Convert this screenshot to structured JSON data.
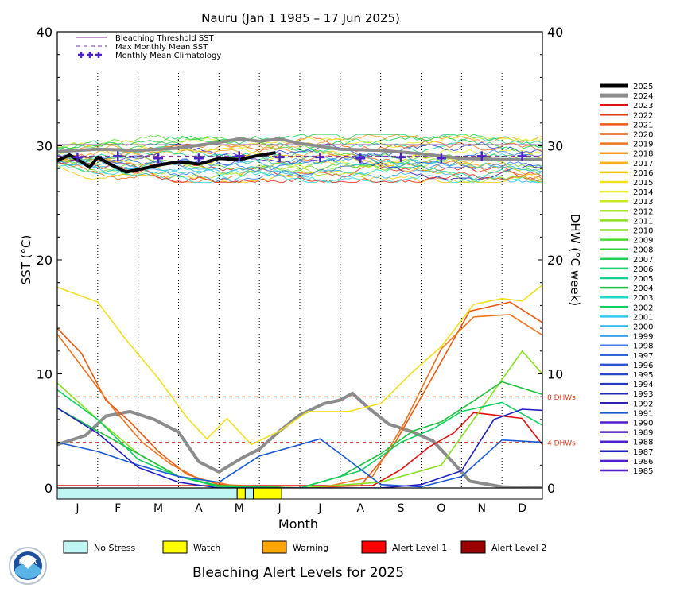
{
  "chart_data": {
    "type": "line",
    "title": "Nauru      (Jan 1 1985 – 17 Jun 2025)",
    "xlabel": "Month",
    "ylabel_left": "SST (°C)",
    "ylabel_right": "DHW (°C week)",
    "ylim": [
      0,
      40
    ],
    "grid": "vertical dotted month lines",
    "x_months": [
      "J",
      "F",
      "M",
      "A",
      "M",
      "J",
      "J",
      "A",
      "S",
      "O",
      "N",
      "D"
    ],
    "y_ticks": [
      "0",
      "10",
      "20",
      "30",
      "40"
    ],
    "inner_legend": [
      {
        "label": "Bleaching Threshold SST",
        "color": "#7a2f8f",
        "style": "solid"
      },
      {
        "label": "Max Monthly Mean SST",
        "color": "#7a2f8f",
        "style": "dashed"
      },
      {
        "label": "Monthly Mean Climatology",
        "color": "#4a22c8",
        "style": "plus"
      }
    ],
    "dhw_thresholds": [
      {
        "value": 8,
        "label": "8 DHWs"
      },
      {
        "value": 4,
        "label": "4 DHWs"
      }
    ],
    "bleaching_threshold_sst": 30.1,
    "max_monthly_mean_sst": 29.1,
    "climatology": [
      29.0,
      29.1,
      28.9,
      28.9,
      29.1,
      29.0,
      29.0,
      28.9,
      29.0,
      28.9,
      29.1,
      29.1
    ],
    "year_legend": [
      "2025",
      "2024",
      "2023",
      "2022",
      "2021",
      "2020",
      "2019",
      "2018",
      "2017",
      "2016",
      "2015",
      "2014",
      "2013",
      "2012",
      "2011",
      "2010",
      "2009",
      "2008",
      "2007",
      "2006",
      "2005",
      "2004",
      "2003",
      "2002",
      "2001",
      "2000",
      "1999",
      "1998",
      "1997",
      "1996",
      "1995",
      "1994",
      "1993",
      "1992",
      "1991",
      "1990",
      "1989",
      "1988",
      "1987",
      "1986",
      "1985"
    ],
    "series": [
      {
        "name": "2025",
        "color": "#000000",
        "sst_x": [
          0,
          0.3,
          0.6,
          0.8,
          1.0,
          1.3,
          1.7,
          2.0,
          2.5,
          3.0,
          3.5,
          4.0,
          4.5,
          4.9,
          5.4
        ],
        "sst": [
          28.7,
          29.2,
          28.6,
          28.1,
          29.0,
          28.4,
          27.7,
          27.9,
          28.3,
          28.6,
          28.4,
          28.9,
          28.8,
          29.1,
          29.4
        ]
      },
      {
        "name": "2024",
        "color": "#8c8c8c",
        "sst_x": [
          0,
          1,
          2,
          3,
          4,
          4.5,
          5,
          5.5,
          6,
          7,
          8,
          9,
          10,
          11,
          12
        ],
        "sst": [
          29.5,
          29.7,
          29.6,
          29.8,
          30.3,
          30.6,
          30.4,
          30.6,
          30.2,
          29.7,
          29.6,
          29.3,
          28.9,
          28.8,
          28.8
        ],
        "dhw_x": [
          0,
          0.7,
          1.2,
          1.8,
          2.4,
          3.0,
          3.5,
          4.0,
          4.6,
          5.0,
          5.5,
          6.0,
          6.6,
          7.0,
          7.3,
          7.7,
          8.2,
          8.8,
          9.3,
          9.8,
          10.2,
          11.0,
          12.0
        ],
        "dhw": [
          3.8,
          4.6,
          6.3,
          6.7,
          6.0,
          4.9,
          2.3,
          1.4,
          2.7,
          3.4,
          5.0,
          6.4,
          7.4,
          7.7,
          8.3,
          7.0,
          5.6,
          4.9,
          4.1,
          2.2,
          0.6,
          0.1,
          0.0
        ]
      },
      {
        "name": "2023",
        "color": "#dd1010",
        "dhw_x": [
          0,
          7.8,
          8.5,
          9.2,
          9.8,
          10.3,
          10.8,
          11.5,
          12.0
        ],
        "dhw": [
          0.2,
          0.2,
          1.6,
          3.6,
          4.8,
          6.6,
          6.4,
          6.1,
          3.8
        ]
      },
      {
        "name": "2020",
        "color": "#e85a10",
        "dhw_x": [
          0,
          0.6,
          1.2,
          1.8,
          2.5,
          3.2,
          4.0,
          6.0,
          7.5,
          8.3,
          9.2,
          10.2,
          11.2,
          12.0
        ],
        "dhw": [
          14.0,
          11.8,
          7.7,
          5.8,
          3.2,
          1.2,
          0.3,
          0.0,
          0.2,
          3.6,
          9.2,
          15.5,
          16.3,
          14.5
        ]
      },
      {
        "name": "2019",
        "color": "#ee7420",
        "dhw_x": [
          0,
          0.7,
          1.4,
          2.1,
          2.8,
          3.5,
          4.5,
          6.5,
          7.8,
          8.6,
          9.5,
          10.3,
          11.2,
          12.0
        ],
        "dhw": [
          13.5,
          10.2,
          6.9,
          4.0,
          2.1,
          0.8,
          0.1,
          0.0,
          1.0,
          5.8,
          12.2,
          15.0,
          15.2,
          13.4
        ]
      },
      {
        "name": "2015",
        "color": "#f0e020",
        "dhw_x": [
          0,
          1.0,
          1.7,
          2.5,
          3.2,
          3.7,
          4.2,
          4.8,
          5.5,
          6.2,
          7.2,
          8.0,
          8.8,
          9.5,
          10.3,
          11.0,
          11.5,
          12.0
        ],
        "dhw": [
          17.6,
          16.3,
          13.0,
          9.6,
          6.2,
          4.3,
          6.1,
          3.8,
          5.0,
          6.7,
          6.7,
          7.4,
          10.2,
          12.4,
          16.1,
          16.6,
          16.4,
          17.8
        ]
      },
      {
        "name": "2010",
        "color": "#88e020",
        "dhw_x": [
          0,
          1.0,
          2.0,
          3.0,
          4.0,
          6.0,
          8.0,
          9.5,
          10.3,
          11.0,
          11.5,
          12.0
        ],
        "dhw": [
          9.2,
          6.0,
          3.0,
          1.0,
          0.2,
          0.0,
          0.5,
          2.0,
          6.0,
          9.5,
          12.0,
          10.0
        ]
      },
      {
        "name": "2004",
        "color": "#20c040",
        "dhw_x": [
          0,
          1.0,
          2.0,
          3.0,
          4.0,
          6.0,
          7.0,
          8.0,
          8.8,
          9.5,
          10.2,
          11.0,
          12.0
        ],
        "dhw": [
          7.0,
          5.0,
          3.0,
          1.0,
          0.2,
          0.0,
          1.0,
          3.0,
          5.0,
          5.8,
          7.4,
          9.3,
          8.2
        ]
      },
      {
        "name": "2002",
        "color": "#10d060",
        "dhw_x": [
          0,
          1.0,
          2.0,
          3.0,
          4.0,
          6.0,
          7.5,
          8.5,
          9.3,
          10.0,
          11.0,
          12.0
        ],
        "dhw": [
          8.6,
          6.0,
          2.5,
          1.0,
          0.1,
          0.0,
          1.5,
          4.0,
          5.2,
          6.7,
          7.5,
          5.5
        ]
      },
      {
        "name": "1991",
        "color": "#1a5ad0",
        "dhw_x": [
          0,
          1.0,
          2.0,
          3.0,
          4.0,
          5.0,
          6.0,
          6.5,
          7.0,
          8.0,
          9.0,
          10.0,
          11.0,
          12.0
        ],
        "dhw": [
          4.0,
          3.2,
          2.0,
          1.0,
          0.5,
          2.8,
          3.8,
          4.3,
          3.0,
          0.3,
          0.1,
          1.0,
          4.2,
          4.0
        ]
      },
      {
        "name": "1987",
        "color": "#2020c0",
        "dhw_x": [
          0,
          1.0,
          2.0,
          3.0,
          4.0,
          8.0,
          9.0,
          10.0,
          10.8,
          11.5,
          12.0
        ],
        "dhw": [
          7.0,
          4.8,
          1.8,
          0.5,
          0.0,
          0.0,
          0.3,
          1.5,
          6.0,
          6.9,
          6.8
        ]
      }
    ],
    "alert_bar": [
      {
        "start": 0,
        "end": 4.45,
        "level": "no_stress"
      },
      {
        "start": 4.45,
        "end": 4.65,
        "level": "watch"
      },
      {
        "start": 4.65,
        "end": 4.85,
        "level": "no_stress"
      },
      {
        "start": 4.85,
        "end": 5.55,
        "level": "watch"
      }
    ],
    "alert_levels": [
      {
        "key": "no_stress",
        "label": "No Stress",
        "color": "#bff5f2"
      },
      {
        "key": "watch",
        "label": "Watch",
        "color": "#ffff00"
      },
      {
        "key": "warning",
        "label": "Warning",
        "color": "#ffa500"
      },
      {
        "key": "alert1",
        "label": "Alert Level 1",
        "color": "#ff0000"
      },
      {
        "key": "alert2",
        "label": "Alert Level 2",
        "color": "#990000"
      }
    ],
    "bottom_title": "Bleaching Alert Levels for 2025",
    "logo_text": "NOAA"
  }
}
